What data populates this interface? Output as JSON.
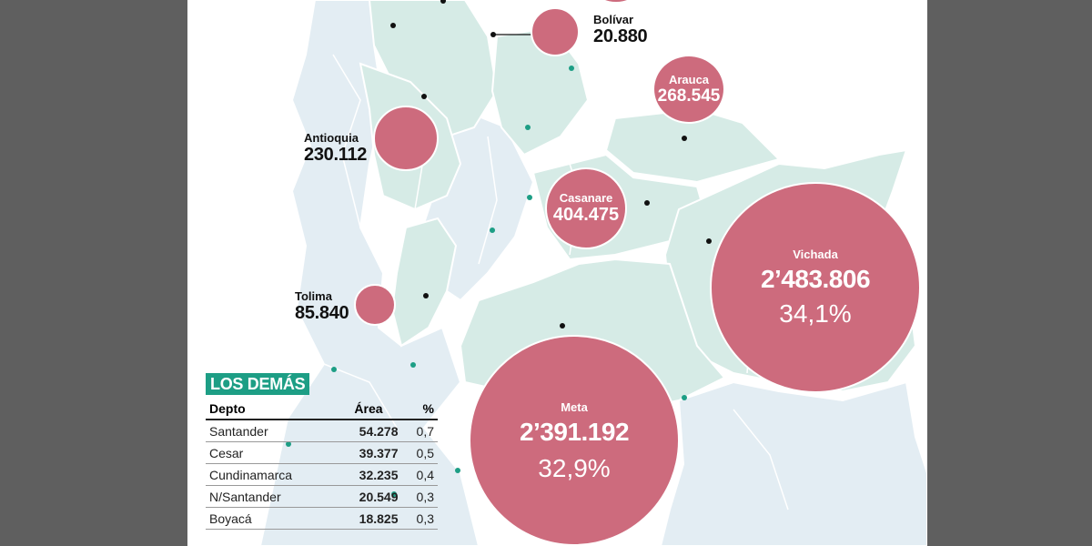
{
  "colors": {
    "bubble": "#cd6b7d",
    "region_fill_dark": "#d6ebe6",
    "region_fill_light": "#e3edf3",
    "region_border": "#ffffff",
    "teal_accent": "#1d9e85",
    "dot_teal": "#1d9e85",
    "dot_black": "#111111"
  },
  "map_labels": {
    "bolivar": {
      "name": "Bolívar",
      "value": "20.880"
    },
    "antioquia": {
      "name": "Antioquia",
      "value": "230.112"
    },
    "tolima": {
      "name": "Tolima",
      "value": "85.840"
    }
  },
  "bubbles": {
    "arauca": {
      "name": "Arauca",
      "value": "268.545"
    },
    "casanare": {
      "name": "Casanare",
      "value": "404.475"
    },
    "vichada": {
      "name": "Vichada",
      "value": "2’483.806",
      "percent": "34,1%"
    },
    "meta": {
      "name": "Meta",
      "value": "2’391.192",
      "percent": "32,9%"
    }
  },
  "bubble_levels": [
    {
      "id": "bolivar",
      "area": 20880
    },
    {
      "id": "antioquia",
      "area": 230112
    },
    {
      "id": "tolima",
      "area": 85840
    },
    {
      "id": "arauca",
      "area": 268545
    },
    {
      "id": "casanare",
      "area": 404475
    },
    {
      "id": "vichada",
      "area": 2483806
    },
    {
      "id": "meta",
      "area": 2391192
    }
  ],
  "table": {
    "title": "LOS DEMÁS",
    "headers": {
      "depto": "Depto",
      "area": "Área",
      "pct": "%"
    },
    "rows": [
      {
        "depto": "Santander",
        "area": "54.278",
        "pct": "0,7"
      },
      {
        "depto": "Cesar",
        "area": "39.377",
        "pct": "0,5"
      },
      {
        "depto": "Cundinamarca",
        "area": "32.235",
        "pct": "0,4"
      },
      {
        "depto": "N/Santander",
        "area": "20.549",
        "pct": "0,3"
      },
      {
        "depto": "Boyacá",
        "area": "18.825",
        "pct": "0,3"
      }
    ]
  }
}
